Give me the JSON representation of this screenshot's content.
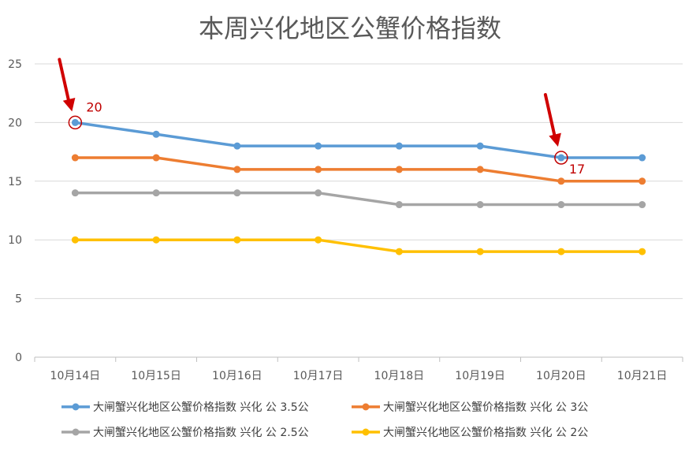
{
  "chart_data": {
    "type": "line",
    "title": "本周兴化地区公蟹价格指数",
    "xlabel": "",
    "ylabel": "",
    "categories": [
      "10月14日",
      "10月15日",
      "10月16日",
      "10月17日",
      "10月18日",
      "10月19日",
      "10月20日",
      "10月21日"
    ],
    "ylim": [
      0,
      25
    ],
    "yticks": [
      0,
      5,
      10,
      15,
      20,
      25
    ],
    "grid": true,
    "legend_position": "bottom",
    "series": [
      {
        "name": "大闸蟹兴化地区公蟹价格指数 兴化 公 3.5公",
        "color": "#5b9bd5",
        "values": [
          20,
          19,
          18,
          18,
          18,
          18,
          17,
          17
        ]
      },
      {
        "name": "大闸蟹兴化地区公蟹价格指数 兴化 公 3公",
        "color": "#ed7d31",
        "values": [
          17,
          17,
          16,
          16,
          16,
          16,
          15,
          15
        ]
      },
      {
        "name": "大闸蟹兴化地区公蟹价格指数 兴化 公 2.5公",
        "color": "#a5a5a5",
        "values": [
          14,
          14,
          14,
          14,
          13,
          13,
          13,
          13
        ]
      },
      {
        "name": "大闸蟹兴化地区公蟹价格指数 兴化 公 2公",
        "color": "#ffc000",
        "values": [
          10,
          10,
          10,
          10,
          9,
          9,
          9,
          9
        ]
      }
    ],
    "annotations": [
      {
        "series": 0,
        "index": 0,
        "label": "20",
        "color": "#c00000"
      },
      {
        "series": 0,
        "index": 6,
        "label": "17",
        "color": "#c00000"
      }
    ]
  }
}
